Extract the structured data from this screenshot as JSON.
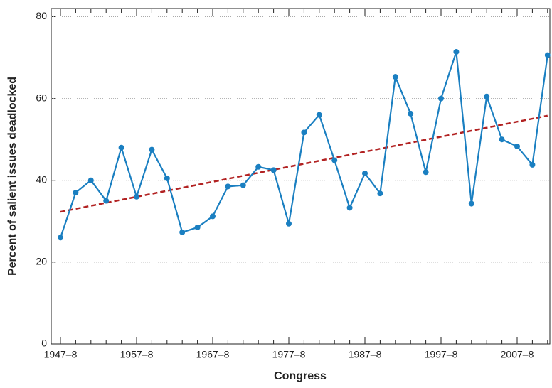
{
  "chart_data": {
    "type": "line",
    "x_label": "Congress",
    "y_label": "Percent of salient issues deadlocked",
    "categories": [
      "1947–8",
      null,
      null,
      null,
      null,
      "1957–8",
      null,
      null,
      null,
      null,
      "1967–8",
      null,
      null,
      null,
      null,
      "1977–8",
      null,
      null,
      null,
      null,
      "1987–8",
      null,
      null,
      null,
      null,
      "1997–8",
      null,
      null,
      null,
      null,
      "2007–8",
      null,
      null
    ],
    "series": [
      {
        "color": "#1a7fc1",
        "values": [
          26,
          37,
          40,
          35,
          48,
          36,
          47.5,
          40.5,
          27.3,
          28.5,
          31.2,
          38.5,
          38.8,
          43.3,
          42.5,
          29.4,
          51.7,
          56,
          44.9,
          33.3,
          41.7,
          36.8,
          65.3,
          56.3,
          42,
          60,
          71.4,
          34.3,
          60.5,
          50,
          48.3,
          43.8,
          70.6
        ]
      }
    ],
    "trend": {
      "start": 32.3,
      "end": 55.8,
      "color": "#b22222"
    },
    "ylim": [
      0,
      82
    ],
    "yticks": [
      0,
      20,
      40,
      60,
      80
    ],
    "grid": true
  }
}
